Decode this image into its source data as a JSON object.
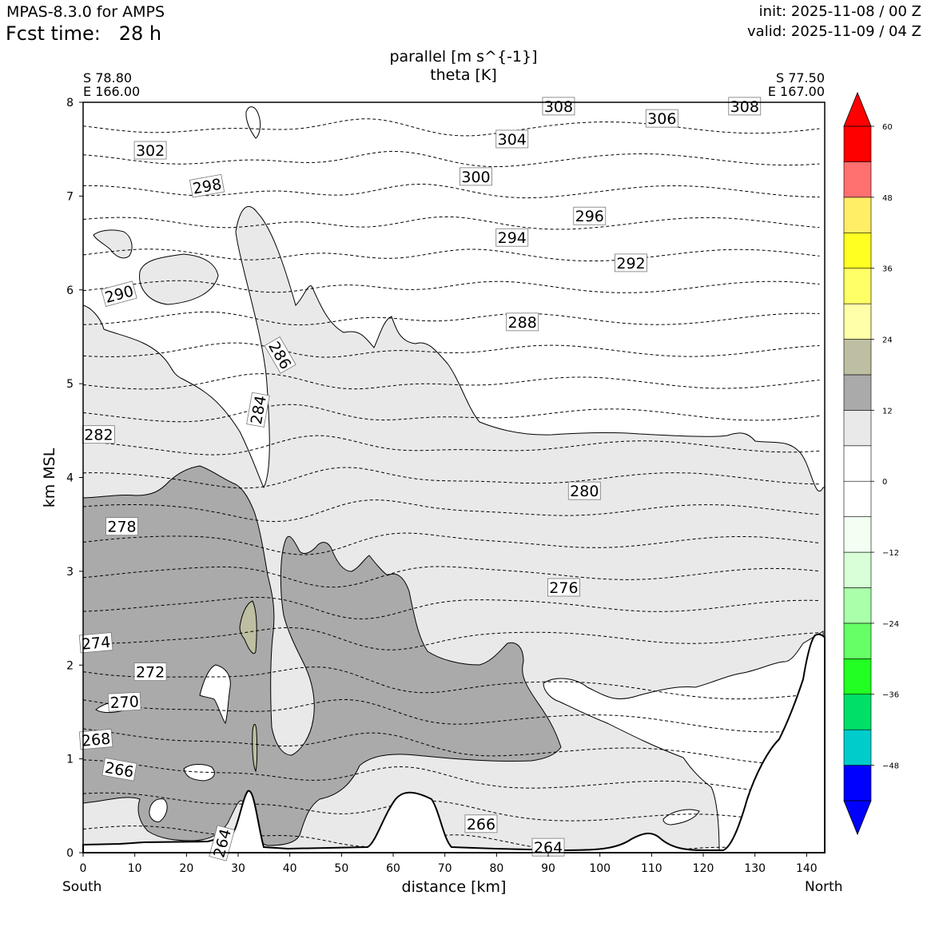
{
  "header": {
    "model": "MPAS-8.3.0 for AMPS",
    "fcst_time": "Fcst time:   28 h",
    "init": "init: 2025-11-08 / 00 Z",
    "valid": "valid: 2025-11-09 / 04 Z"
  },
  "endpoints": {
    "left_lat": "S 78.80",
    "left_lon": "E 166.00",
    "right_lat": "S 77.50",
    "right_lon": "E 167.00",
    "south": "South",
    "north": "North"
  },
  "chart_data": {
    "type": "cross-section-contour",
    "title": [
      "parallel [m s^{-1}]",
      "theta [K]"
    ],
    "xlabel": "distance [km]",
    "ylabel": "km MSL",
    "xlim": [
      0,
      143.5
    ],
    "ylim": [
      0,
      8
    ],
    "x_ticks": [
      0,
      10,
      20,
      30,
      40,
      50,
      60,
      70,
      80,
      90,
      100,
      110,
      120,
      130,
      140
    ],
    "y_ticks": [
      0,
      1,
      2,
      3,
      4,
      5,
      6,
      7,
      8
    ],
    "theta_contour_labels": [
      {
        "x": 27,
        "y": 0.1,
        "v": "264",
        "rot": -75
      },
      {
        "x": 90,
        "y": 0.05,
        "v": "264",
        "rot": 0
      },
      {
        "x": 7,
        "y": 0.88,
        "v": "266",
        "rot": 10
      },
      {
        "x": 77,
        "y": 0.3,
        "v": "266",
        "rot": 0
      },
      {
        "x": 2.5,
        "y": 1.2,
        "v": "268",
        "rot": -5
      },
      {
        "x": 8,
        "y": 1.6,
        "v": "270",
        "rot": -3
      },
      {
        "x": 13,
        "y": 1.92,
        "v": "272",
        "rot": 0
      },
      {
        "x": 2.5,
        "y": 2.23,
        "v": "274",
        "rot": -5
      },
      {
        "x": 93,
        "y": 2.82,
        "v": "276",
        "rot": 0
      },
      {
        "x": 7.5,
        "y": 3.47,
        "v": "278",
        "rot": 0
      },
      {
        "x": 97,
        "y": 3.85,
        "v": "280",
        "rot": 0
      },
      {
        "x": 3,
        "y": 4.45,
        "v": "282",
        "rot": 0
      },
      {
        "x": 34,
        "y": 4.72,
        "v": "284",
        "rot": -80
      },
      {
        "x": 38,
        "y": 5.3,
        "v": "286",
        "rot": 60
      },
      {
        "x": 85,
        "y": 5.65,
        "v": "288",
        "rot": 0
      },
      {
        "x": 7,
        "y": 5.95,
        "v": "290",
        "rot": -15
      },
      {
        "x": 106,
        "y": 6.28,
        "v": "292",
        "rot": 0
      },
      {
        "x": 83,
        "y": 6.55,
        "v": "294",
        "rot": 0
      },
      {
        "x": 98,
        "y": 6.78,
        "v": "296",
        "rot": 0
      },
      {
        "x": 24,
        "y": 7.1,
        "v": "298",
        "rot": -10
      },
      {
        "x": 76,
        "y": 7.2,
        "v": "300",
        "rot": 0
      },
      {
        "x": 13,
        "y": 7.48,
        "v": "302",
        "rot": 0
      },
      {
        "x": 83,
        "y": 7.6,
        "v": "304",
        "rot": 0
      },
      {
        "x": 112,
        "y": 7.82,
        "v": "306",
        "rot": 0
      },
      {
        "x": 92,
        "y": 7.95,
        "v": "308",
        "rot": 0
      },
      {
        "x": 128,
        "y": 7.95,
        "v": "308",
        "rot": 0
      }
    ],
    "colorbar": {
      "tick_labels": [
        "60",
        "48",
        "36",
        "24",
        "12",
        "0",
        "−12",
        "−24",
        "−36",
        "−48"
      ],
      "tick_values": [
        60,
        48,
        36,
        24,
        12,
        0,
        -12,
        -24,
        -36,
        -48
      ],
      "levels": [
        -54,
        -48,
        -42,
        -36,
        -30,
        -24,
        -18,
        -12,
        -6,
        0,
        6,
        12,
        18,
        24,
        30,
        36,
        42,
        48,
        54,
        60
      ],
      "colors": [
        "#0000ff",
        "#00cccc",
        "#00e066",
        "#22ff22",
        "#66ff66",
        "#aaffaa",
        "#d8ffd8",
        "#f2fff2",
        "#ffffff",
        "#ffffff",
        "#e9e9e9",
        "#aaaaaa",
        "#bebea2",
        "#ffffaa",
        "#ffff66",
        "#ffff22",
        "#ffee66",
        "#ff7070",
        "#ff0000"
      ],
      "under_color": "#0000ff",
      "over_color": "#ff0000"
    }
  }
}
